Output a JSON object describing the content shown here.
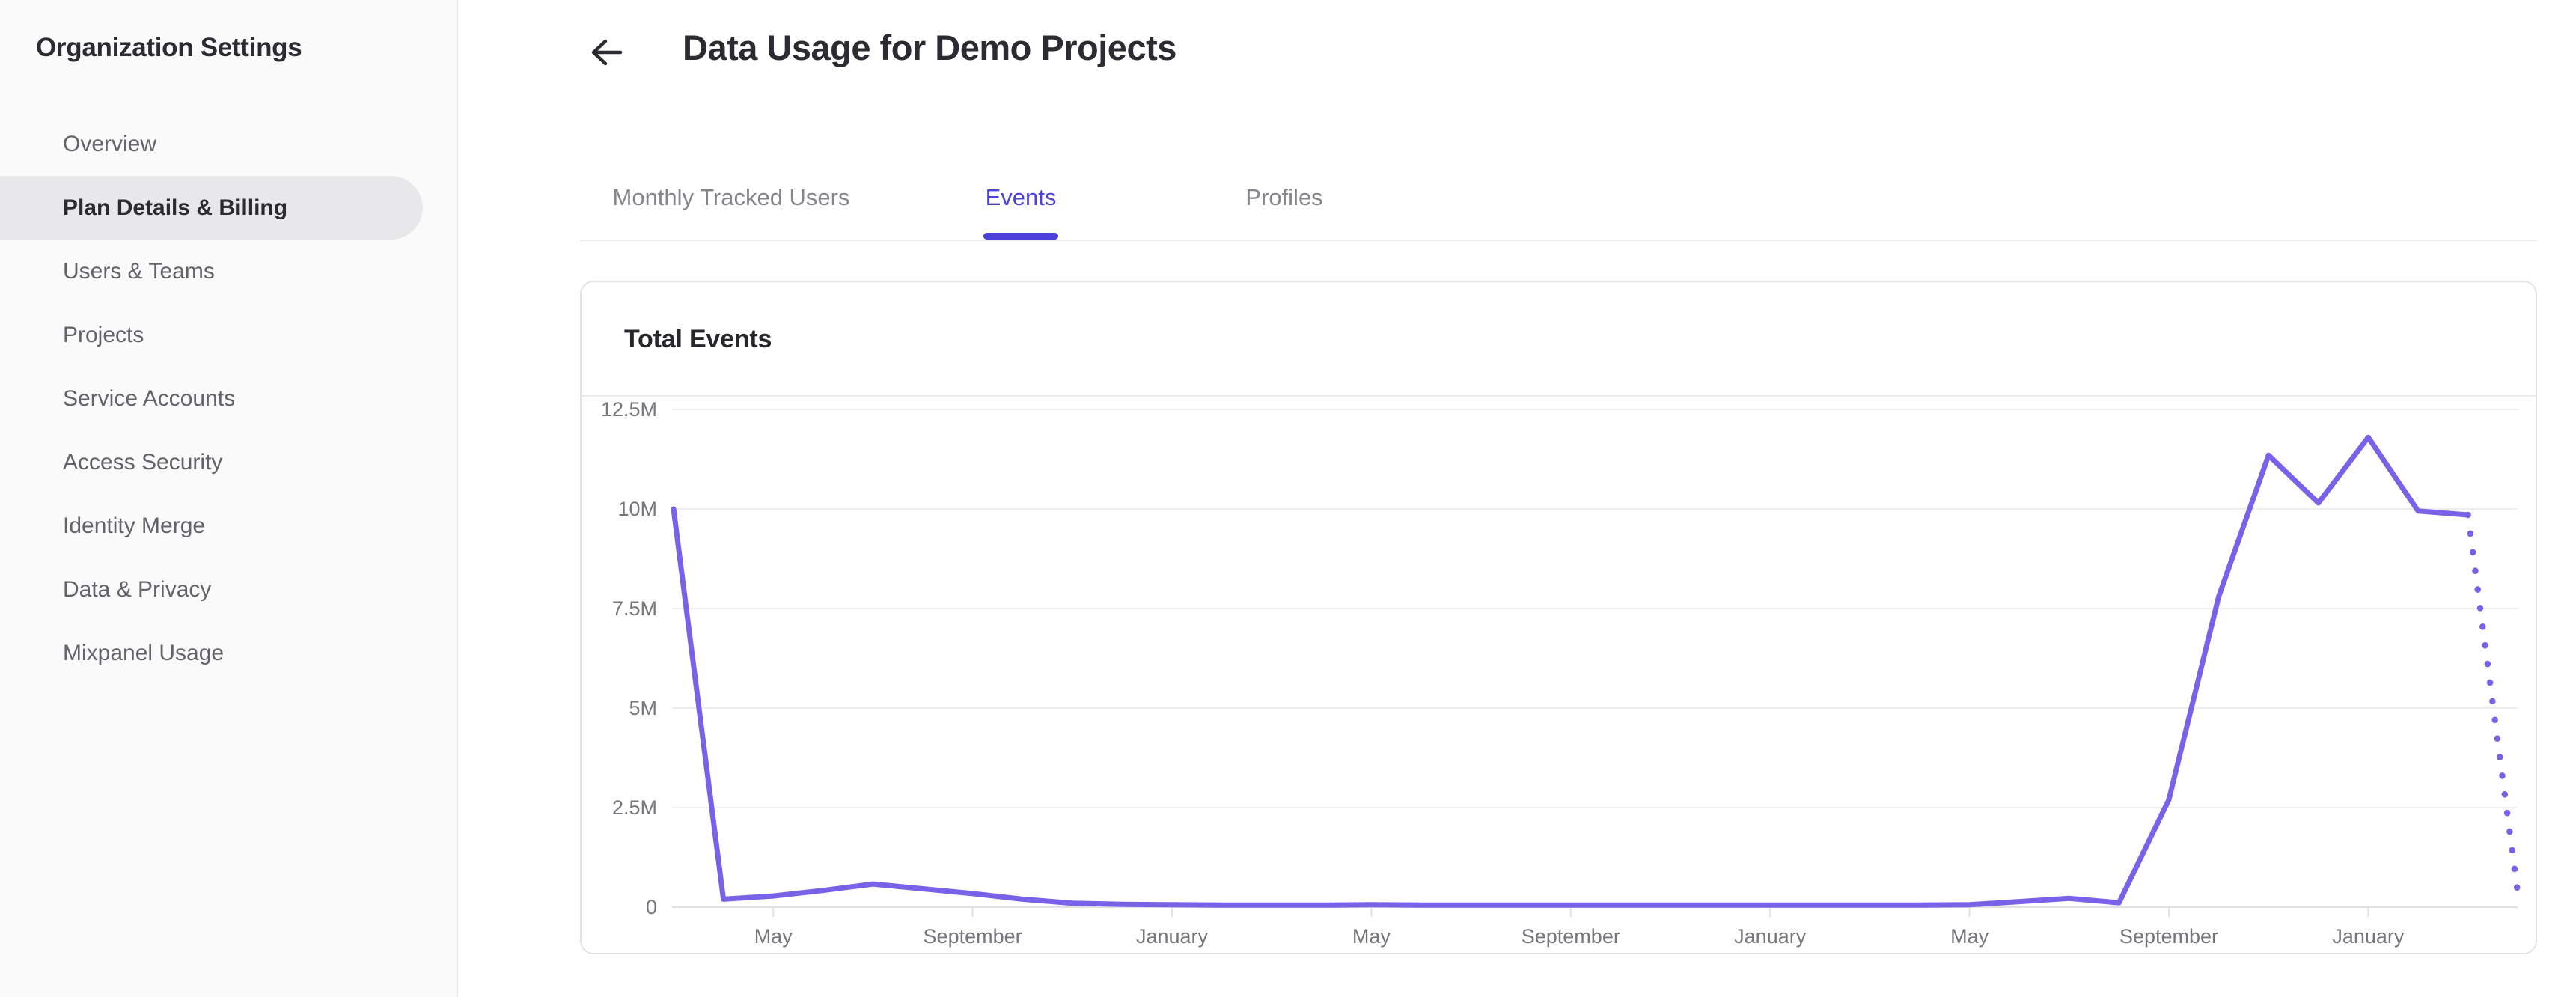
{
  "sidebar": {
    "title": "Organization Settings",
    "items": [
      {
        "label": "Overview",
        "active": false
      },
      {
        "label": "Plan Details & Billing",
        "active": true
      },
      {
        "label": "Users & Teams",
        "active": false
      },
      {
        "label": "Projects",
        "active": false
      },
      {
        "label": "Service Accounts",
        "active": false
      },
      {
        "label": "Access Security",
        "active": false
      },
      {
        "label": "Identity Merge",
        "active": false
      },
      {
        "label": "Data & Privacy",
        "active": false
      },
      {
        "label": "Mixpanel Usage",
        "active": false
      }
    ]
  },
  "header": {
    "back_icon": "arrow-left",
    "title": "Data Usage for Demo Projects"
  },
  "tabs": [
    {
      "label": "Monthly Tracked Users",
      "active": false
    },
    {
      "label": "Events",
      "active": true
    },
    {
      "label": "Profiles",
      "active": false
    }
  ],
  "card": {
    "title": "Total Events"
  },
  "colors": {
    "accent_tab": "#4c42d9",
    "chart_line": "#7a62e8",
    "gridline": "#eeeeef",
    "axis_line": "#e1e1e4",
    "axis_label": "#76767c",
    "sidebar_bg": "#fafafa",
    "sidebar_active_pill": "#e8e8ea",
    "text_dark": "#2b2b31",
    "text_muted": "#63636a"
  },
  "chart_data": {
    "type": "line",
    "title": "Total Events",
    "xlabel": "",
    "ylabel": "",
    "ylim_millions": [
      0,
      12.5
    ],
    "grid": "horizontal-only",
    "legend": "none",
    "y_tick_labels": [
      "0",
      "2.5M",
      "5M",
      "7.5M",
      "10M",
      "12.5M"
    ],
    "x_tick_labels": [
      "May",
      "September",
      "January",
      "May",
      "September",
      "January",
      "May",
      "September",
      "January"
    ],
    "x_tick_indices": [
      2,
      6,
      10,
      14,
      18,
      22,
      26,
      30,
      34
    ],
    "months": [
      "Mar",
      "Apr",
      "May",
      "Jun",
      "Jul",
      "Aug",
      "Sep",
      "Oct",
      "Nov",
      "Dec",
      "Jan",
      "Feb",
      "Mar",
      "Apr",
      "May",
      "Jun",
      "Jul",
      "Aug",
      "Sep",
      "Oct",
      "Nov",
      "Dec",
      "Jan",
      "Feb",
      "Mar",
      "Apr",
      "May",
      "Jun",
      "Jul",
      "Aug",
      "Sep",
      "Oct",
      "Nov",
      "Dec",
      "Jan",
      "Feb",
      "Mar",
      "Apr"
    ],
    "values_millions": [
      10.0,
      0.2,
      0.28,
      0.42,
      0.58,
      0.46,
      0.34,
      0.2,
      0.1,
      0.07,
      0.06,
      0.05,
      0.05,
      0.05,
      0.06,
      0.05,
      0.05,
      0.05,
      0.05,
      0.05,
      0.05,
      0.05,
      0.05,
      0.05,
      0.05,
      0.05,
      0.06,
      0.14,
      0.22,
      0.11,
      2.7,
      7.8,
      11.35,
      10.15,
      11.8,
      9.95,
      9.85,
      0.35
    ],
    "last_point_projected_dotted": true
  }
}
